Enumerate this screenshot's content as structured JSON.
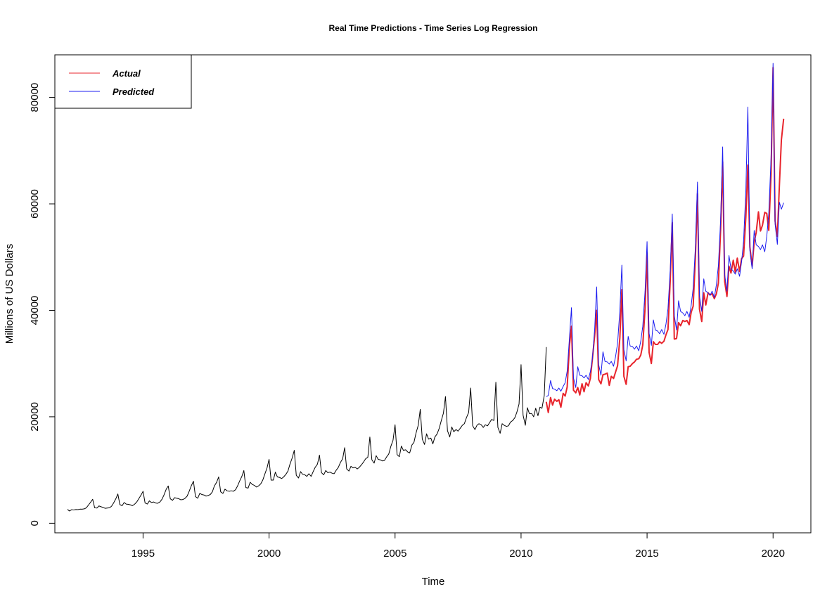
{
  "chart_data": {
    "type": "line",
    "title": "Real Time Predictions - Time Series Log Regression",
    "xlabel": "Time",
    "ylabel": "Millions of US Dollars",
    "xlim": [
      1991.5,
      2021.5
    ],
    "ylim": [
      -1800,
      88000
    ],
    "x_ticks": [
      1995,
      2000,
      2005,
      2010,
      2015,
      2020
    ],
    "x_tick_labels": [
      "1995",
      "2000",
      "2005",
      "2010",
      "2015",
      "2020"
    ],
    "y_ticks": [
      0,
      20000,
      40000,
      60000,
      80000
    ],
    "y_tick_labels": [
      "0",
      "20000",
      "40000",
      "60000",
      "80000"
    ],
    "legend": {
      "position": "top-left",
      "entries": [
        {
          "label": "Actual",
          "color": "#e8242c"
        },
        {
          "label": "Predicted",
          "color": "#1c1cf0"
        }
      ]
    },
    "series": [
      {
        "color": "#000000",
        "x": [
          1992.0,
          1992.08,
          1992.17,
          1992.25,
          1992.33,
          1992.42,
          1992.5,
          1992.58,
          1992.67,
          1992.75,
          1992.83,
          1992.92,
          1993.0,
          1993.08,
          1993.17,
          1993.25,
          1993.33,
          1993.42,
          1993.5,
          1993.58,
          1993.67,
          1993.75,
          1993.83,
          1993.92,
          1994.0,
          1994.08,
          1994.17,
          1994.25,
          1994.33,
          1994.42,
          1994.5,
          1994.58,
          1994.67,
          1994.75,
          1994.83,
          1994.92,
          1995.0,
          1995.08,
          1995.17,
          1995.25,
          1995.33,
          1995.42,
          1995.5,
          1995.58,
          1995.67,
          1995.75,
          1995.83,
          1995.92,
          1996.0,
          1996.08,
          1996.17,
          1996.25,
          1996.33,
          1996.42,
          1996.5,
          1996.58,
          1996.67,
          1996.75,
          1996.83,
          1996.92,
          1997.0,
          1997.08,
          1997.17,
          1997.25,
          1997.33,
          1997.42,
          1997.5,
          1997.58,
          1997.67,
          1997.75,
          1997.83,
          1997.92,
          1998.0,
          1998.08,
          1998.17,
          1998.25,
          1998.33,
          1998.42,
          1998.5,
          1998.58,
          1998.67,
          1998.75,
          1998.83,
          1998.92,
          1999.0,
          1999.08,
          1999.17,
          1999.25,
          1999.33,
          1999.42,
          1999.5,
          1999.58,
          1999.67,
          1999.75,
          1999.83,
          1999.92,
          2000.0,
          2000.08,
          2000.17,
          2000.25,
          2000.33,
          2000.42,
          2000.5,
          2000.58,
          2000.67,
          2000.75,
          2000.83,
          2000.92,
          2001.0,
          2001.08,
          2001.17,
          2001.25,
          2001.33,
          2001.42,
          2001.5,
          2001.58,
          2001.67,
          2001.75,
          2001.83,
          2001.92,
          2002.0,
          2002.08,
          2002.17,
          2002.25,
          2002.33,
          2002.42,
          2002.5,
          2002.58,
          2002.67,
          2002.75,
          2002.83,
          2002.92,
          2003.0,
          2003.08,
          2003.17,
          2003.25,
          2003.33,
          2003.42,
          2003.5,
          2003.58,
          2003.67,
          2003.75,
          2003.83,
          2003.92,
          2004.0,
          2004.08,
          2004.17,
          2004.25,
          2004.33,
          2004.42,
          2004.5,
          2004.58,
          2004.67,
          2004.75,
          2004.83,
          2004.92,
          2005.0,
          2005.08,
          2005.17,
          2005.25,
          2005.33,
          2005.42,
          2005.5,
          2005.58,
          2005.67,
          2005.75,
          2005.83,
          2005.92,
          2006.0,
          2006.08,
          2006.17,
          2006.25,
          2006.33,
          2006.42,
          2006.5,
          2006.58,
          2006.67,
          2006.75,
          2006.83,
          2006.92,
          2007.0,
          2007.08,
          2007.17,
          2007.25,
          2007.33,
          2007.42,
          2007.5,
          2007.58,
          2007.67,
          2007.75,
          2007.83,
          2007.92,
          2008.0,
          2008.08,
          2008.17,
          2008.25,
          2008.33,
          2008.42,
          2008.5,
          2008.58,
          2008.67,
          2008.75,
          2008.83,
          2008.92,
          2009.0,
          2009.08,
          2009.17,
          2009.25,
          2009.33,
          2009.42,
          2009.5,
          2009.58,
          2009.67,
          2009.75,
          2009.83,
          2009.92,
          2010.0,
          2010.08,
          2010.17,
          2010.25,
          2010.33,
          2010.42,
          2010.5,
          2010.58,
          2010.67,
          2010.75,
          2010.83,
          2010.92,
          2011.0
        ],
        "values": [
          2600,
          2300,
          2550,
          2500,
          2580,
          2560,
          2650,
          2640,
          2700,
          2900,
          3400,
          3950,
          4500,
          2900,
          2850,
          3250,
          3100,
          2950,
          2800,
          2850,
          2900,
          3200,
          3800,
          4600,
          5500,
          3500,
          3300,
          3900,
          3600,
          3550,
          3450,
          3300,
          3600,
          4000,
          4600,
          5300,
          6000,
          3800,
          3600,
          4200,
          3900,
          4000,
          3800,
          3750,
          4000,
          4500,
          5300,
          6400,
          7000,
          4600,
          4300,
          4800,
          4700,
          4600,
          4400,
          4450,
          4700,
          5100,
          6000,
          7100,
          7900,
          5000,
          4700,
          5600,
          5400,
          5300,
          5100,
          5200,
          5400,
          5900,
          7000,
          7700,
          8700,
          5900,
          5600,
          6400,
          6100,
          6000,
          6100,
          6000,
          6300,
          7000,
          7900,
          8800,
          9900,
          6700,
          6600,
          7700,
          7300,
          7100,
          6800,
          7000,
          7400,
          8100,
          9200,
          10400,
          12000,
          8100,
          8100,
          9600,
          8700,
          8600,
          8400,
          8700,
          9200,
          9800,
          11100,
          12300,
          13700,
          9000,
          8500,
          9700,
          9200,
          9100,
          8800,
          9300,
          8800,
          9700,
          10500,
          11100,
          12800,
          9500,
          9100,
          9900,
          9500,
          9600,
          9400,
          9300,
          10000,
          10500,
          11400,
          12100,
          14200,
          10200,
          9800,
          10700,
          10400,
          10500,
          10200,
          10500,
          11000,
          11500,
          12100,
          12400,
          16200,
          11900,
          11300,
          12700,
          12000,
          11900,
          11700,
          11800,
          12500,
          13000,
          14400,
          15600,
          18500,
          12900,
          12500,
          14500,
          13700,
          13800,
          13400,
          13200,
          14700,
          15200,
          16900,
          18400,
          21400,
          15800,
          14800,
          16800,
          15800,
          16000,
          14900,
          16200,
          16800,
          17800,
          19200,
          20700,
          23800,
          17400,
          16200,
          18100,
          17200,
          17600,
          17300,
          17800,
          18400,
          18700,
          19800,
          20800,
          25400,
          18300,
          17600,
          18400,
          18700,
          18500,
          18000,
          18500,
          18300,
          18900,
          19500,
          19300,
          26500,
          18000,
          16900,
          18700,
          18400,
          18200,
          18300,
          19000,
          19300,
          19800,
          20800,
          22400,
          29800,
          20300,
          18400,
          21700,
          20600,
          20600,
          20000,
          21600,
          20200,
          21800,
          21600,
          24000,
          33100
        ]
      },
      {
        "name": "Actual",
        "color": "#e8242c",
        "x": [
          2011.0,
          2011.08,
          2011.17,
          2011.25,
          2011.33,
          2011.42,
          2011.5,
          2011.58,
          2011.67,
          2011.75,
          2011.83,
          2011.92,
          2012.0,
          2012.08,
          2012.17,
          2012.25,
          2012.33,
          2012.42,
          2012.5,
          2012.58,
          2012.67,
          2012.75,
          2012.83,
          2012.92,
          2013.0,
          2013.08,
          2013.17,
          2013.25,
          2013.33,
          2013.42,
          2013.5,
          2013.58,
          2013.67,
          2013.75,
          2013.83,
          2013.92,
          2014.0,
          2014.08,
          2014.17,
          2014.25,
          2014.33,
          2014.42,
          2014.5,
          2014.58,
          2014.67,
          2014.75,
          2014.83,
          2014.92,
          2015.0,
          2015.08,
          2015.17,
          2015.25,
          2015.33,
          2015.42,
          2015.5,
          2015.58,
          2015.67,
          2015.75,
          2015.83,
          2015.92,
          2016.0,
          2016.08,
          2016.17,
          2016.25,
          2016.33,
          2016.42,
          2016.5,
          2016.58,
          2016.67,
          2016.75,
          2016.83,
          2016.92,
          2017.0,
          2017.08,
          2017.17,
          2017.25,
          2017.33,
          2017.42,
          2017.5,
          2017.58,
          2017.67,
          2017.75,
          2017.83,
          2017.92,
          2018.0,
          2018.08,
          2018.17,
          2018.25,
          2018.33,
          2018.42,
          2018.5,
          2018.58,
          2018.67,
          2018.75,
          2018.83,
          2018.92,
          2019.0,
          2019.08,
          2019.17,
          2019.25,
          2019.33,
          2019.42,
          2019.5,
          2019.58,
          2019.67,
          2019.75,
          2019.83,
          2019.92,
          2020.0,
          2020.08,
          2020.17,
          2020.25,
          2020.33,
          2020.42
        ],
        "values": [
          22800,
          20800,
          23600,
          22200,
          23300,
          22900,
          23200,
          21800,
          24400,
          23900,
          25600,
          33300,
          37000,
          25000,
          24500,
          25500,
          24100,
          26200,
          24700,
          26400,
          25800,
          27200,
          30800,
          35200,
          40000,
          27000,
          26200,
          27900,
          28000,
          28200,
          25900,
          27600,
          27200,
          28400,
          29600,
          34800,
          43900,
          27600,
          26100,
          29400,
          29500,
          30000,
          30300,
          30800,
          30900,
          31600,
          33500,
          40300,
          50800,
          32100,
          30000,
          34100,
          33600,
          33600,
          34100,
          33800,
          34200,
          35400,
          36400,
          45700,
          56500,
          34600,
          34700,
          37700,
          37100,
          38100,
          37900,
          38100,
          37300,
          39600,
          40800,
          50200,
          61900,
          40200,
          37900,
          43300,
          41000,
          43300,
          42900,
          43100,
          42200,
          43100,
          45100,
          55300,
          67900,
          45400,
          42600,
          48300,
          47000,
          49400,
          47200,
          49800,
          47300,
          49700,
          50200,
          57500,
          67300,
          51900,
          48300,
          52800,
          54600,
          58500,
          54900,
          56000,
          58400,
          58200,
          55000,
          65500,
          85600,
          56800,
          53900,
          63400,
          72000,
          76000
        ]
      },
      {
        "name": "Predicted",
        "color": "#1c1cf0",
        "x": [
          2011.0,
          2011.08,
          2011.17,
          2011.25,
          2011.33,
          2011.42,
          2011.5,
          2011.58,
          2011.67,
          2011.75,
          2011.83,
          2011.92,
          2012.0,
          2012.08,
          2012.17,
          2012.25,
          2012.33,
          2012.42,
          2012.5,
          2012.58,
          2012.67,
          2012.75,
          2012.83,
          2012.92,
          2013.0,
          2013.08,
          2013.17,
          2013.25,
          2013.33,
          2013.42,
          2013.5,
          2013.58,
          2013.67,
          2013.75,
          2013.83,
          2013.92,
          2014.0,
          2014.08,
          2014.17,
          2014.25,
          2014.33,
          2014.42,
          2014.5,
          2014.58,
          2014.67,
          2014.75,
          2014.83,
          2014.92,
          2015.0,
          2015.08,
          2015.17,
          2015.25,
          2015.33,
          2015.42,
          2015.5,
          2015.58,
          2015.67,
          2015.75,
          2015.83,
          2015.92,
          2016.0,
          2016.08,
          2016.17,
          2016.25,
          2016.33,
          2016.42,
          2016.5,
          2016.58,
          2016.67,
          2016.75,
          2016.83,
          2016.92,
          2017.0,
          2017.08,
          2017.17,
          2017.25,
          2017.33,
          2017.42,
          2017.5,
          2017.58,
          2017.67,
          2017.75,
          2017.83,
          2017.92,
          2018.0,
          2018.08,
          2018.17,
          2018.25,
          2018.33,
          2018.42,
          2018.5,
          2018.58,
          2018.67,
          2018.75,
          2018.83,
          2018.92,
          2019.0,
          2019.08,
          2019.17,
          2019.25,
          2019.33,
          2019.42,
          2019.5,
          2019.58,
          2019.67,
          2019.75,
          2019.83,
          2019.92,
          2020.0,
          2020.08,
          2020.17,
          2020.25,
          2020.33,
          2020.42
        ],
        "values": [
          23800,
          24000,
          26800,
          25300,
          25200,
          24900,
          25400,
          24800,
          25700,
          26400,
          28600,
          34800,
          40500,
          27300,
          25500,
          29400,
          27800,
          27700,
          27300,
          27800,
          27000,
          28500,
          30900,
          36400,
          44400,
          29800,
          27800,
          32200,
          30400,
          30300,
          29900,
          30400,
          29500,
          31300,
          33800,
          39900,
          48500,
          32600,
          30500,
          35100,
          33300,
          33200,
          32700,
          33300,
          32400,
          34200,
          37000,
          43600,
          52900,
          35700,
          33400,
          38200,
          36300,
          36100,
          35600,
          36400,
          35500,
          37400,
          40300,
          47600,
          58100,
          39000,
          36300,
          41800,
          39800,
          39500,
          39000,
          39800,
          38700,
          40900,
          44200,
          52100,
          64100,
          42700,
          39800,
          45900,
          43600,
          43300,
          42800,
          43600,
          42400,
          44800,
          48400,
          57000,
          70700,
          46700,
          43600,
          50300,
          47800,
          47400,
          46800,
          47800,
          46400,
          49100,
          53000,
          62500,
          78200,
          51200,
          47800,
          55000,
          52300,
          52000,
          51400,
          52300,
          51000,
          53900,
          58200,
          68600,
          86400,
          56200,
          52400,
          60300,
          59000,
          60200
        ]
      }
    ]
  }
}
